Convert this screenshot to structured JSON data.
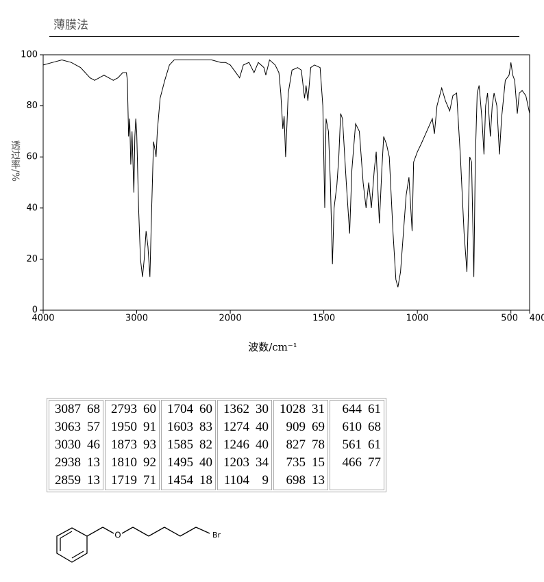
{
  "header": {
    "title": "薄膜法"
  },
  "chart_data": {
    "type": "line",
    "xlabel": "波数/cm⁻¹",
    "ylabel": "透过率/%",
    "color": "#000000",
    "xlim": [
      4000,
      400
    ],
    "ylim": [
      0,
      100
    ],
    "xticks": [
      4000,
      3000,
      2000,
      1500,
      1000,
      500,
      400
    ],
    "yticks": [
      0,
      20,
      40,
      60,
      80,
      100
    ],
    "x": [
      4000,
      3900,
      3800,
      3700,
      3650,
      3600,
      3500,
      3450,
      3400,
      3350,
      3300,
      3250,
      3200,
      3150,
      3110,
      3100,
      3087,
      3075,
      3063,
      3050,
      3030,
      3020,
      3010,
      3000,
      2980,
      2960,
      2938,
      2920,
      2900,
      2880,
      2859,
      2840,
      2820,
      2800,
      2793,
      2780,
      2750,
      2700,
      2650,
      2600,
      2500,
      2400,
      2300,
      2200,
      2100,
      2050,
      2000,
      1970,
      1950,
      1930,
      1900,
      1873,
      1850,
      1820,
      1810,
      1790,
      1760,
      1740,
      1730,
      1719,
      1712,
      1704,
      1690,
      1670,
      1640,
      1620,
      1603,
      1595,
      1585,
      1570,
      1550,
      1520,
      1505,
      1495,
      1488,
      1475,
      1465,
      1454,
      1445,
      1430,
      1420,
      1410,
      1400,
      1380,
      1362,
      1350,
      1330,
      1310,
      1290,
      1274,
      1260,
      1246,
      1230,
      1220,
      1203,
      1190,
      1180,
      1165,
      1150,
      1130,
      1115,
      1104,
      1090,
      1075,
      1060,
      1045,
      1028,
      1020,
      1000,
      980,
      950,
      920,
      909,
      895,
      870,
      850,
      827,
      810,
      790,
      770,
      750,
      735,
      720,
      710,
      698,
      690,
      680,
      670,
      655,
      644,
      635,
      625,
      610,
      600,
      590,
      575,
      561,
      550,
      530,
      510,
      500,
      490,
      480,
      466,
      455,
      440,
      420,
      400
    ],
    "values": [
      96,
      97,
      98,
      97,
      96,
      95,
      91,
      90,
      91,
      92,
      91,
      90,
      91,
      93,
      93,
      90,
      68,
      75,
      57,
      70,
      46,
      68,
      75,
      70,
      40,
      20,
      13,
      20,
      31,
      25,
      13,
      40,
      66,
      62,
      60,
      70,
      83,
      90,
      96,
      98,
      98,
      98,
      98,
      98,
      97,
      97,
      96,
      93,
      91,
      96,
      97,
      93,
      97,
      95,
      92,
      98,
      96,
      93,
      85,
      71,
      76,
      60,
      85,
      94,
      95,
      94,
      83,
      88,
      82,
      95,
      96,
      95,
      80,
      40,
      75,
      70,
      50,
      18,
      40,
      49,
      60,
      77,
      75,
      50,
      30,
      55,
      73,
      70,
      50,
      40,
      50,
      40,
      55,
      62,
      34,
      55,
      68,
      65,
      60,
      30,
      12,
      9,
      15,
      30,
      45,
      52,
      31,
      58,
      62,
      65,
      70,
      75,
      69,
      80,
      87,
      82,
      78,
      84,
      85,
      60,
      30,
      15,
      60,
      58,
      13,
      60,
      85,
      88,
      75,
      61,
      80,
      85,
      68,
      80,
      85,
      80,
      61,
      75,
      90,
      92,
      97,
      92,
      90,
      77,
      85,
      86,
      84,
      77
    ]
  },
  "table": {
    "columns": [
      [
        [
          3087,
          68
        ],
        [
          3063,
          57
        ],
        [
          3030,
          46
        ],
        [
          2938,
          13
        ],
        [
          2859,
          13
        ]
      ],
      [
        [
          2793,
          60
        ],
        [
          1950,
          91
        ],
        [
          1873,
          93
        ],
        [
          1810,
          92
        ],
        [
          1719,
          71
        ]
      ],
      [
        [
          1704,
          60
        ],
        [
          1603,
          83
        ],
        [
          1585,
          82
        ],
        [
          1495,
          40
        ],
        [
          1454,
          18
        ]
      ],
      [
        [
          1362,
          30
        ],
        [
          1274,
          40
        ],
        [
          1246,
          40
        ],
        [
          1203,
          34
        ],
        [
          1104,
          9
        ]
      ],
      [
        [
          1028,
          31
        ],
        [
          909,
          69
        ],
        [
          827,
          78
        ],
        [
          735,
          15
        ],
        [
          698,
          13
        ]
      ],
      [
        [
          644,
          61
        ],
        [
          610,
          68
        ],
        [
          561,
          61
        ],
        [
          466,
          77
        ]
      ]
    ]
  },
  "structure": {
    "atoms": [
      "O",
      "Br"
    ]
  }
}
